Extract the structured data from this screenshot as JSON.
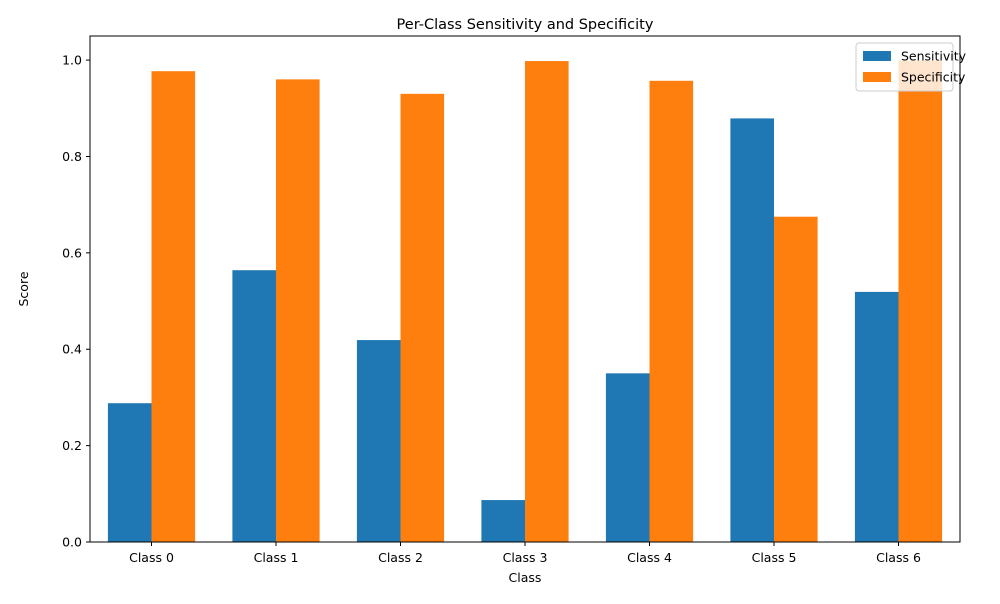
{
  "chart_data": {
    "type": "bar",
    "title": "Per-Class Sensitivity and Specificity",
    "xlabel": "Class",
    "ylabel": "Score",
    "categories": [
      "Class 0",
      "Class 1",
      "Class 2",
      "Class 3",
      "Class 4",
      "Class 5",
      "Class 6"
    ],
    "series": [
      {
        "name": "Sensitivity",
        "color": "#1f77b4",
        "values": [
          0.288,
          0.564,
          0.419,
          0.087,
          0.35,
          0.879,
          0.519
        ]
      },
      {
        "name": "Specificity",
        "color": "#ff7f0e",
        "values": [
          0.977,
          0.96,
          0.93,
          0.998,
          0.957,
          0.675,
          0.999
        ]
      }
    ],
    "ylim": [
      0,
      1.05
    ],
    "yticks": [
      "0.0",
      "0.2",
      "0.4",
      "0.6",
      "0.8",
      "1.0"
    ],
    "grid": false,
    "legend_position": "top-right"
  }
}
